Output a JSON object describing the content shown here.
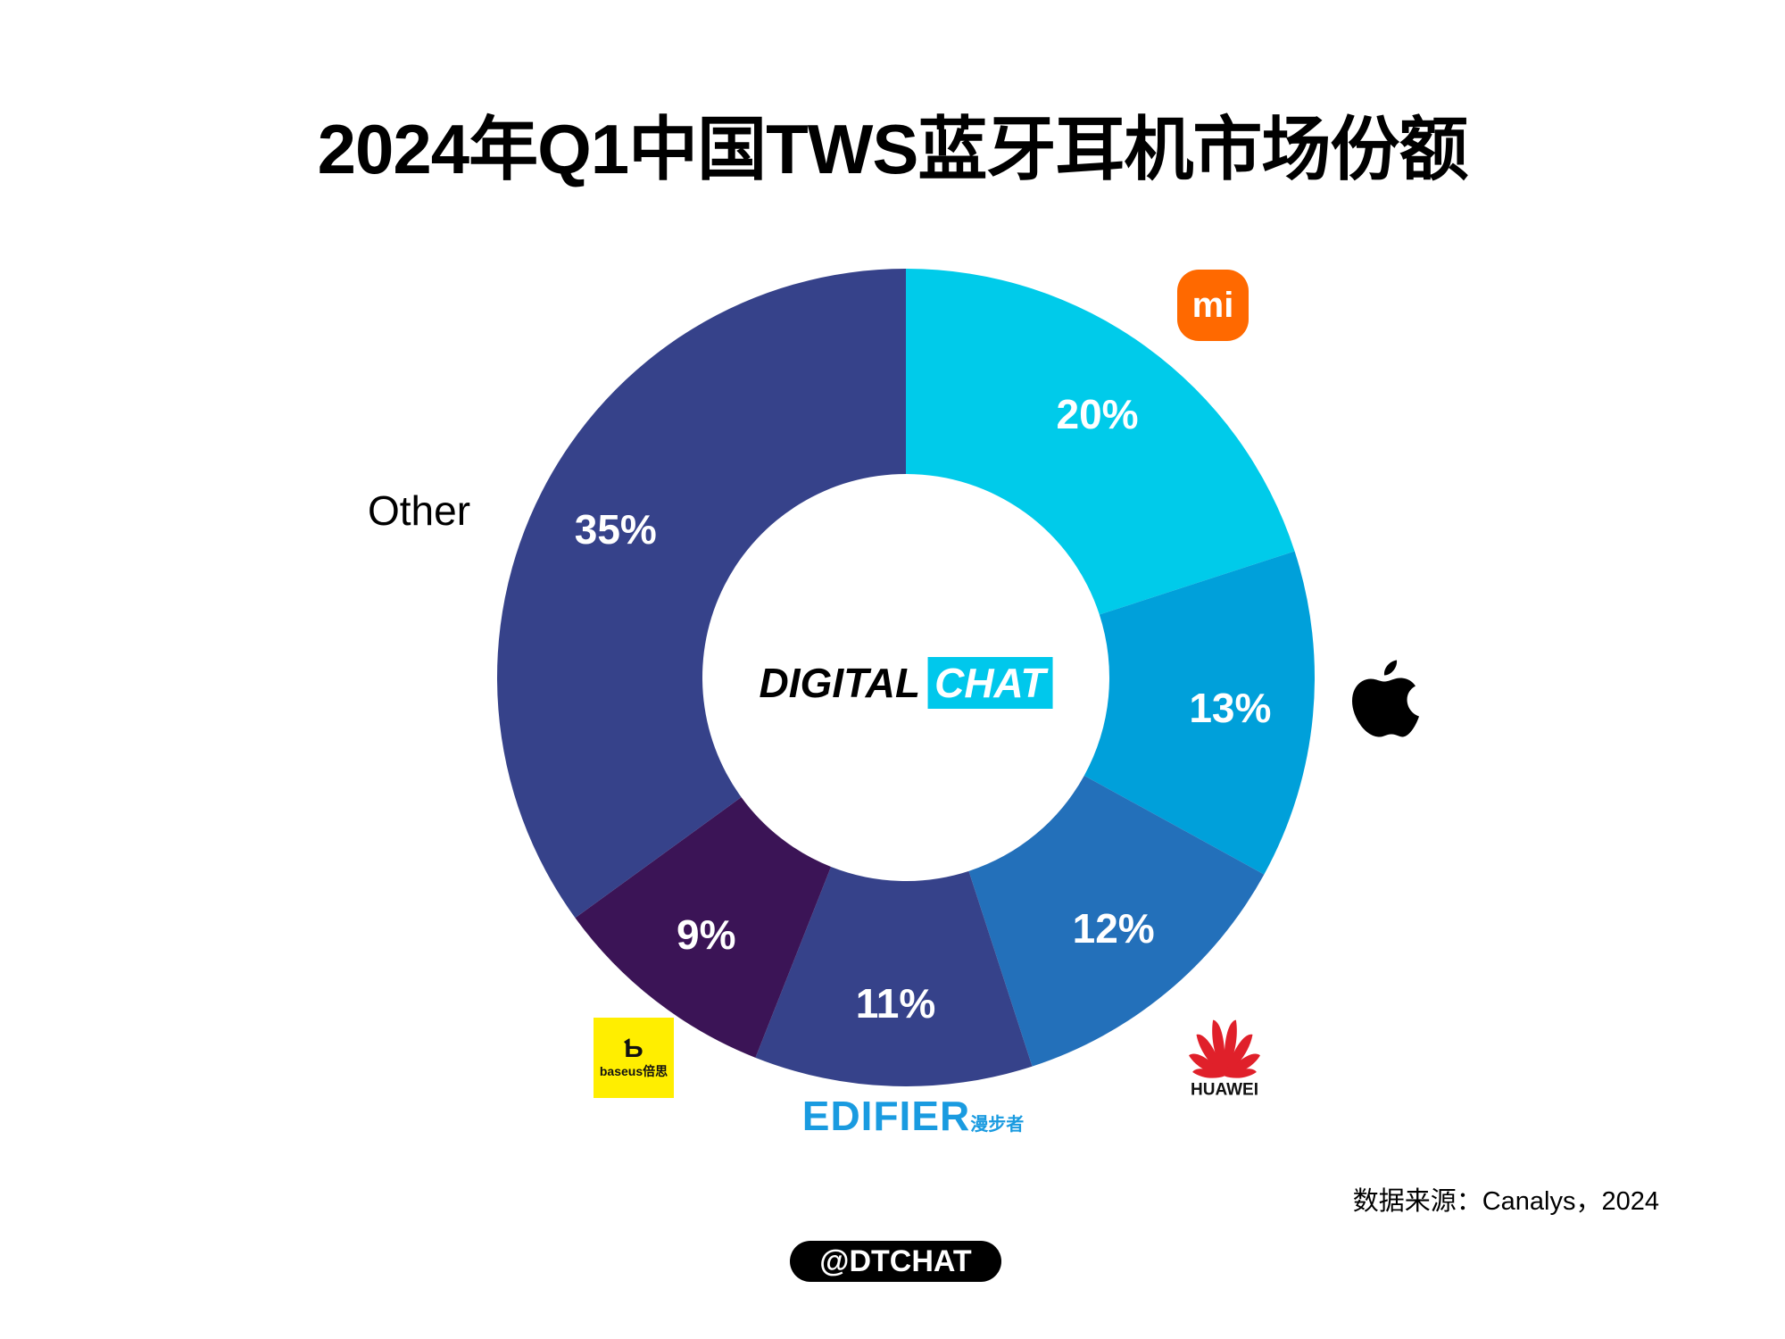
{
  "chart_data": {
    "type": "pie",
    "subtype": "donut",
    "title": "2024年Q1中国TWS蓝牙耳机市场份额",
    "unit": "%",
    "slices": [
      {
        "name": "Xiaomi",
        "logo_text": "mi",
        "value": 20,
        "label": "20%",
        "color": "#00CBEA"
      },
      {
        "name": "Apple",
        "value": 13,
        "label": "13%",
        "color": "#00A0DA"
      },
      {
        "name": "Huawei",
        "logo_text": "HUAWEI",
        "value": 12,
        "label": "12%",
        "color": "#2370BA"
      },
      {
        "name": "Edifier",
        "logo_text": "EDIFIER",
        "logo_text_cn": "漫步者",
        "value": 11,
        "label": "11%",
        "color": "#36428A"
      },
      {
        "name": "Baseus",
        "logo_text": "baseus倍思",
        "value": 9,
        "label": "9%",
        "color": "#3B1456"
      },
      {
        "name": "Other",
        "value": 35,
        "label": "35%",
        "color": "#36428A"
      }
    ],
    "other_label": "Other",
    "center_logo": {
      "part1": "DIGITAL",
      "part2": "CHAT"
    },
    "source": "数据来源：Canalys，2024",
    "handle": "@DTCHAT"
  }
}
